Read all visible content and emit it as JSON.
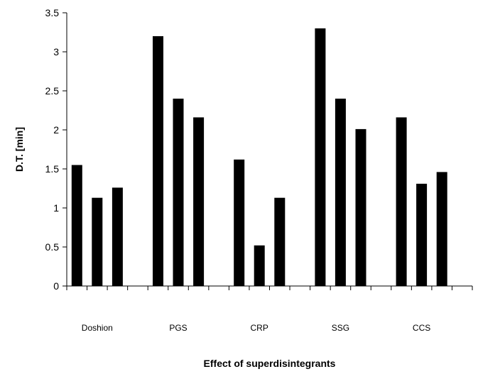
{
  "chart_data": {
    "type": "bar",
    "title": "",
    "xlabel": "Effect of superdisintegrants",
    "ylabel": "D.T. [min]",
    "ylim": [
      0,
      3.5
    ],
    "yticks": [
      "0",
      "0.5",
      "1",
      "1.5",
      "2",
      "2.5",
      "3",
      "3.5"
    ],
    "categories": [
      "Doshion",
      "PGS",
      "CRP",
      "SSG",
      "CCS"
    ],
    "series": [
      {
        "values": [
          1.55,
          3.2,
          1.62,
          3.3,
          2.16
        ]
      },
      {
        "values": [
          1.13,
          2.4,
          0.52,
          2.4,
          1.31
        ]
      },
      {
        "values": [
          1.26,
          2.16,
          1.13,
          2.01,
          1.46
        ]
      }
    ],
    "bar_color": "#000000",
    "grid": false,
    "legend": "none"
  }
}
